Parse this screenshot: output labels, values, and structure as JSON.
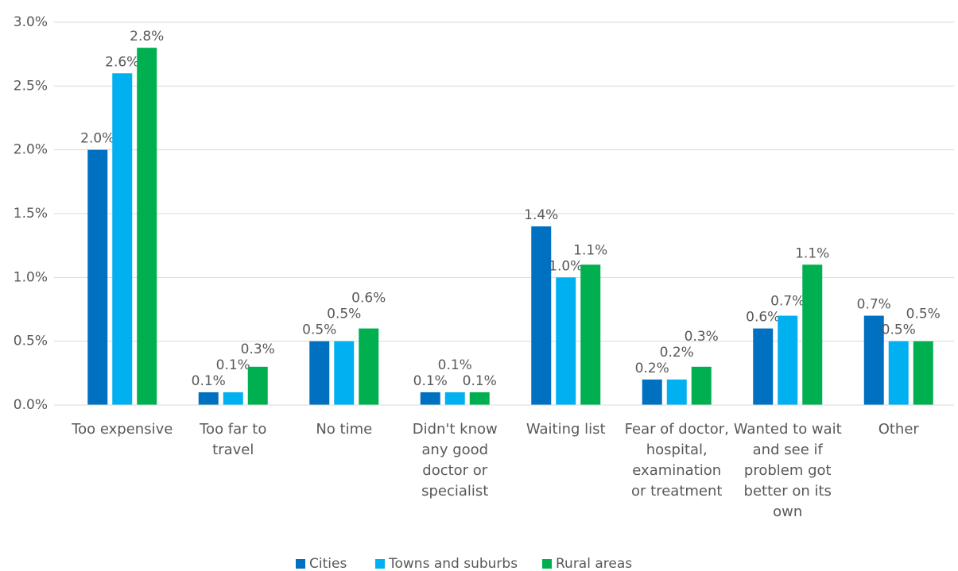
{
  "chart_data": {
    "type": "bar",
    "categories": [
      "Too expensive",
      "Too far to travel",
      "No time",
      "Didn't know any good doctor or specialist",
      "Waiting list",
      "Fear of doctor, hospital, examination or treatment",
      "Wanted to wait and see if problem got better on its own",
      "Other"
    ],
    "series": [
      {
        "name": "Cities",
        "color": "#0070c0",
        "values": [
          2.0,
          0.1,
          0.5,
          0.1,
          1.4,
          0.2,
          0.6,
          0.7
        ],
        "value_labels": [
          "2.0%",
          "0.1%",
          "0.5%",
          "0.1%",
          "1.4%",
          "0.2%",
          "0.6%",
          "0.7%"
        ]
      },
      {
        "name": "Towns and suburbs",
        "color": "#00b0f0",
        "values": [
          2.6,
          0.1,
          0.5,
          0.1,
          1.0,
          0.2,
          0.7,
          0.5
        ],
        "value_labels": [
          "2.6%",
          "0.1%",
          "0.5%",
          "0.1%",
          "1.0%",
          "0.2%",
          "0.7%",
          "0.5%"
        ]
      },
      {
        "name": "Rural areas",
        "color": "#00b050",
        "values": [
          2.8,
          0.3,
          0.6,
          0.1,
          1.1,
          0.3,
          1.1,
          0.5
        ],
        "value_labels": [
          "2.8%",
          "0.3%",
          "0.6%",
          "0.1%",
          "1.1%",
          "0.3%",
          "1.1%",
          "0.5%"
        ]
      }
    ],
    "ylim": [
      0,
      3
    ],
    "yticks": [
      {
        "value": 0,
        "label": "0.0%"
      },
      {
        "value": 0.5,
        "label": "0.5%"
      },
      {
        "value": 1,
        "label": "1.0%"
      },
      {
        "value": 1.5,
        "label": "1.5%"
      },
      {
        "value": 2,
        "label": "2.0%"
      },
      {
        "value": 2.5,
        "label": "2.5%"
      },
      {
        "value": 3,
        "label": "3.0%"
      }
    ],
    "grid": true,
    "legend": "bottom"
  }
}
